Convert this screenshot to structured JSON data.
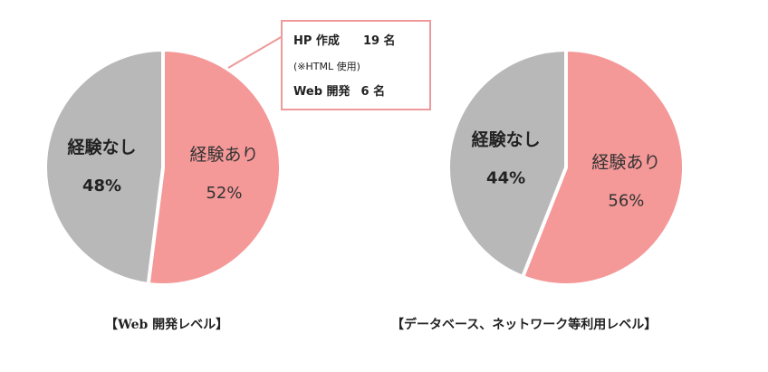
{
  "chart_data": [
    {
      "type": "pie",
      "title": "",
      "caption": "【Web 開発レベル】",
      "slices": [
        {
          "label": "経験あり",
          "value": 52,
          "value_label": "52%",
          "color": "#f49898"
        },
        {
          "label": "経験なし",
          "value": 48,
          "value_label": "48%",
          "color": "#b8b8b8"
        }
      ],
      "callout": {
        "line1_label": "HP 作成",
        "line1_value": "19 名",
        "line2": "(※HTML 使用)",
        "line3_label": "Web 開発",
        "line3_value": "6 名",
        "border_color": "#ee9a9a"
      }
    },
    {
      "type": "pie",
      "title": "",
      "caption": "【データベース、ネットワーク等利用レベル】",
      "slices": [
        {
          "label": "経験あり",
          "value": 56,
          "value_label": "56%",
          "color": "#f49898"
        },
        {
          "label": "経験なし",
          "value": 44,
          "value_label": "44%",
          "color": "#b8b8b8"
        }
      ]
    }
  ]
}
